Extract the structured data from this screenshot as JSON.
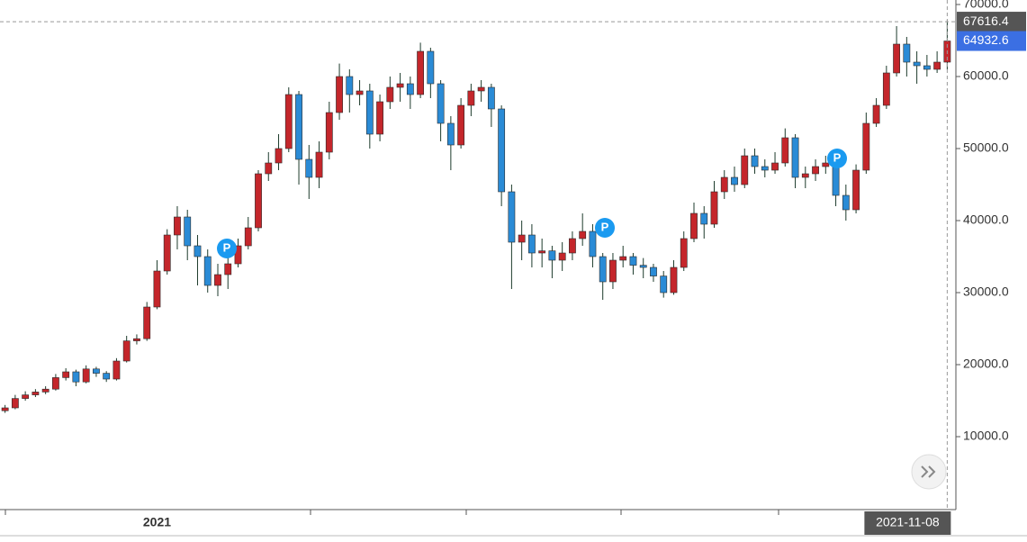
{
  "chart_data": {
    "type": "candlestick",
    "categories": [
      null,
      null,
      null,
      null,
      null,
      null,
      null,
      null,
      null,
      null,
      null,
      null,
      null,
      null,
      null,
      "2021",
      null,
      null,
      null,
      null,
      null,
      null,
      null,
      null,
      null,
      null,
      null,
      null,
      null,
      null,
      null,
      null,
      null,
      null,
      null,
      null,
      null,
      null,
      null,
      null,
      null,
      null,
      null,
      null,
      null,
      null,
      null,
      null,
      null,
      null,
      null,
      null,
      null,
      null,
      null,
      null,
      null,
      null,
      null,
      null,
      null,
      null,
      null,
      null,
      null,
      null,
      null,
      null,
      null,
      null,
      null,
      null,
      null,
      null,
      null,
      null,
      null,
      null,
      null,
      null,
      null,
      null,
      null,
      null,
      null,
      null,
      null,
      null,
      null,
      null,
      null,
      null,
      null,
      "2021-11-08"
    ],
    "open": [
      13600,
      14000,
      15300,
      15800,
      16200,
      16600,
      18200,
      19000,
      17600,
      19400,
      18800,
      18000,
      20500,
      23300,
      23600,
      28000,
      33000,
      38000,
      40500,
      36500,
      35000,
      31000,
      32500,
      34000,
      36500,
      39000,
      46500,
      48000,
      50000,
      57500,
      48500,
      46000,
      49500,
      55000,
      60000,
      57500,
      58000,
      52000,
      56500,
      58500,
      59000,
      57500,
      63500,
      59000,
      53500,
      50500,
      56000,
      58000,
      58500,
      55500,
      44000,
      37000,
      38000,
      35500,
      35800,
      34500,
      35500,
      37500,
      38500,
      35000,
      31500,
      34500,
      35000,
      33800,
      33500,
      32300,
      30000,
      33500,
      37500,
      41000,
      39500,
      44000,
      46000,
      45000,
      49000,
      47500,
      47000,
      48000,
      51500,
      46000,
      46500,
      47500,
      48000,
      43500,
      41500,
      47000,
      53500,
      56000,
      60500,
      64500,
      62000,
      61500,
      61000,
      62000
    ],
    "high": [
      14400,
      15800,
      16300,
      16600,
      17000,
      18700,
      19500,
      19300,
      19900,
      19700,
      19100,
      20900,
      24000,
      24200,
      28700,
      34500,
      38800,
      42000,
      41500,
      38000,
      36000,
      34000,
      36000,
      37500,
      40500,
      47000,
      49500,
      52000,
      58500,
      58000,
      50500,
      51000,
      56500,
      61800,
      61000,
      59500,
      59000,
      57500,
      60000,
      60500,
      60000,
      64700,
      64000,
      59500,
      54500,
      57000,
      59000,
      59500,
      59000,
      56000,
      45000,
      40000,
      39500,
      37500,
      36500,
      37000,
      38500,
      41000,
      39500,
      35500,
      35500,
      36500,
      35500,
      34800,
      34000,
      33000,
      34500,
      38500,
      42500,
      42000,
      45500,
      47000,
      47500,
      50000,
      50000,
      48500,
      49500,
      52800,
      52000,
      47500,
      48500,
      49000,
      48500,
      45000,
      47800,
      55000,
      57000,
      61500,
      67000,
      65500,
      63500,
      63000,
      63500,
      67800
    ],
    "low": [
      13300,
      13800,
      15000,
      15500,
      15900,
      16400,
      17800,
      17000,
      17400,
      18300,
      17600,
      17800,
      20300,
      22800,
      23300,
      27700,
      32500,
      36000,
      34500,
      31000,
      30000,
      29500,
      30500,
      33500,
      36000,
      38500,
      45500,
      47000,
      49500,
      45000,
      43000,
      44500,
      48500,
      54000,
      55000,
      56000,
      50000,
      51000,
      55500,
      56500,
      55500,
      57000,
      57000,
      51000,
      47000,
      50000,
      54500,
      56500,
      53000,
      42000,
      30500,
      34500,
      33500,
      33500,
      32000,
      33000,
      34500,
      36500,
      33500,
      29000,
      30500,
      33500,
      32500,
      32000,
      31500,
      29300,
      29700,
      33000,
      37000,
      37500,
      39000,
      43000,
      44000,
      44500,
      46500,
      46000,
      46500,
      47500,
      44500,
      44500,
      45500,
      46500,
      42000,
      40000,
      41000,
      46500,
      53000,
      55500,
      60000,
      60000,
      59000,
      60000,
      60500,
      61000
    ],
    "close": [
      14000,
      15300,
      15800,
      16200,
      16600,
      18200,
      19000,
      17600,
      19400,
      18800,
      18000,
      20500,
      23300,
      23600,
      28000,
      33000,
      38000,
      40500,
      36500,
      35000,
      31000,
      32500,
      34000,
      36500,
      39000,
      46500,
      48000,
      50000,
      57500,
      48500,
      46000,
      49500,
      55000,
      60000,
      57500,
      58000,
      52000,
      56500,
      58500,
      59000,
      57500,
      63500,
      59000,
      53500,
      50500,
      56000,
      58000,
      58500,
      55500,
      44000,
      37000,
      38000,
      35500,
      35800,
      34500,
      35500,
      37500,
      38500,
      35000,
      31500,
      34500,
      35000,
      33800,
      33500,
      32300,
      30000,
      33500,
      37500,
      41000,
      39500,
      44000,
      46000,
      45000,
      49000,
      47500,
      47000,
      48000,
      51500,
      46000,
      46500,
      47500,
      48000,
      43500,
      41500,
      47000,
      53500,
      56000,
      60500,
      64500,
      62000,
      61500,
      61000,
      62000,
      64932.6
    ],
    "up_color": "#c4262b",
    "down_color": "#2a8bd6",
    "wick_color": "#1d3b2c",
    "ylim": [
      0,
      70625
    ],
    "yticks": [
      {
        "value": 10000,
        "label": "10000.0"
      },
      {
        "value": 20000,
        "label": "20000.0"
      },
      {
        "value": 30000,
        "label": "30000.0"
      },
      {
        "value": 40000,
        "label": "40000.0"
      },
      {
        "value": 50000,
        "label": "50000.0"
      },
      {
        "value": 60000,
        "label": "60000.0"
      },
      {
        "value": 70000,
        "label": "70000.0"
      }
    ],
    "crosshair_price": 67616.4,
    "last_price": 64932.6,
    "markers": [
      "P",
      "P",
      "P"
    ]
  }
}
